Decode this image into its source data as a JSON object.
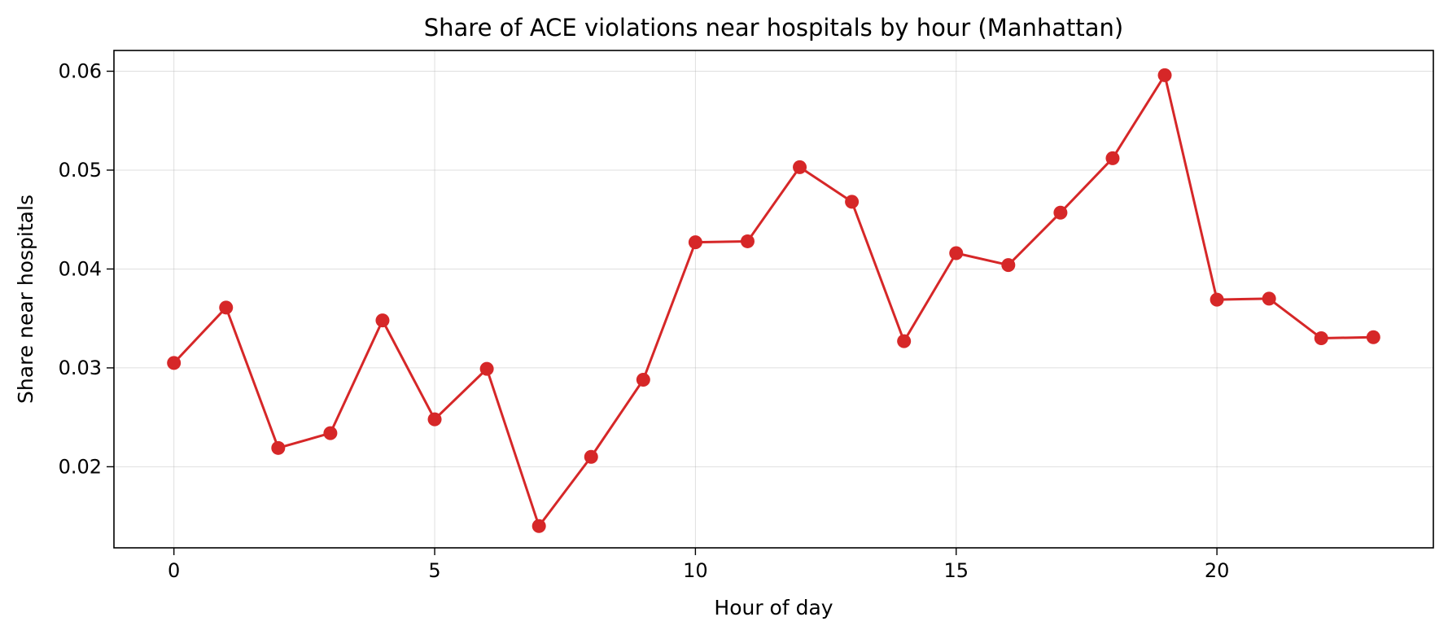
{
  "chart_data": {
    "type": "line",
    "title": "Share of ACE violations near hospitals by hour (Manhattan)",
    "xlabel": "Hour of day",
    "ylabel": "Share near hospitals",
    "xlim": [
      -1.15,
      24.15
    ],
    "ylim": [
      0.0118,
      0.0621
    ],
    "x_ticks": [
      0,
      5,
      10,
      15,
      20
    ],
    "y_ticks": [
      0.02,
      0.03,
      0.04,
      0.05,
      0.06
    ],
    "x_tick_labels": [
      "0",
      "5",
      "10",
      "15",
      "20"
    ],
    "y_tick_labels": [
      "0.02",
      "0.03",
      "0.04",
      "0.05",
      "0.06"
    ],
    "grid": true,
    "legend": "none",
    "x": [
      0,
      1,
      2,
      3,
      4,
      5,
      6,
      7,
      8,
      9,
      10,
      11,
      12,
      13,
      14,
      15,
      16,
      17,
      18,
      19,
      20,
      21,
      22,
      23
    ],
    "series": [
      {
        "values": [
          0.0305,
          0.0361,
          0.0219,
          0.0234,
          0.0348,
          0.0248,
          0.0299,
          0.014,
          0.021,
          0.0288,
          0.0427,
          0.0428,
          0.0503,
          0.0468,
          0.0327,
          0.0416,
          0.0404,
          0.0457,
          0.0512,
          0.0596,
          0.0369,
          0.037,
          0.033,
          0.0331
        ],
        "color": "#d62728"
      }
    ]
  }
}
